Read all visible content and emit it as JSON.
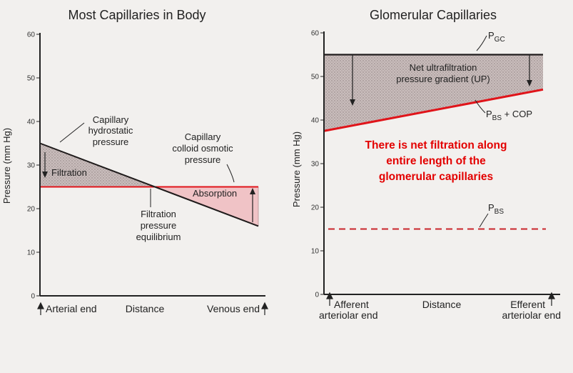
{
  "colors": {
    "background": "#f2f0ee",
    "axis": "#222222",
    "hatch_fill": "#c9bdbc",
    "pink_fill": "#f0c3c6",
    "red_line": "#e0141a",
    "dark_line": "#1f1b1b",
    "note_red": "#e30000"
  },
  "chart_data": [
    {
      "type": "line",
      "title": "Most Capillaries in Body",
      "ylabel": "Pressure (mm Hg)",
      "xlabel": "Distance",
      "ylim": [
        0,
        60
      ],
      "yticks": [
        "0",
        "10",
        "20",
        "30",
        "40",
        "50",
        "60"
      ],
      "xlim": [
        0,
        1
      ],
      "x_labels": {
        "start": "Arterial end",
        "middle": "Distance",
        "end": "Venous end"
      },
      "grid": false,
      "series": [
        {
          "name": "Capillary hydrostatic pressure",
          "x": [
            0,
            1
          ],
          "y": [
            35,
            16
          ]
        },
        {
          "name": "Capillary colloid osmotic pressure",
          "x": [
            0,
            1
          ],
          "y": [
            25,
            25
          ]
        }
      ],
      "regions": [
        {
          "label": "Filtration",
          "from_x": 0,
          "to_x": 0.5
        },
        {
          "label": "Absorption",
          "from_x": 0.5,
          "to_x": 1
        }
      ],
      "annotations": {
        "hydrostatic": [
          "Capillary",
          "hydrostatic",
          "pressure"
        ],
        "oncotic": [
          "Capillary",
          "colloid osmotic",
          "pressure"
        ],
        "equilibrium": [
          "Filtration",
          "pressure",
          "equilibrium"
        ],
        "filtration": "Filtration",
        "absorption": "Absorption"
      }
    },
    {
      "type": "line",
      "title": "Glomerular Capillaries",
      "ylabel": "Pressure (mm Hg)",
      "xlabel": "Distance",
      "ylim": [
        0,
        60
      ],
      "yticks": [
        "0",
        "10",
        "20",
        "30",
        "40",
        "50",
        "60"
      ],
      "xlim": [
        0,
        1
      ],
      "x_labels": {
        "start": [
          "Afferent",
          "arteriolar end"
        ],
        "middle": "Distance",
        "end": [
          "Efferent",
          "arteriolar end"
        ]
      },
      "grid": false,
      "series": [
        {
          "name": "PGC",
          "x": [
            0,
            1
          ],
          "y": [
            55,
            55
          ]
        },
        {
          "name": "PBS + COP",
          "x": [
            0,
            1
          ],
          "y": [
            37.5,
            47
          ]
        },
        {
          "name": "PBS",
          "x": [
            0,
            1
          ],
          "y": [
            15,
            15
          ],
          "style": "dashed"
        }
      ],
      "regions": [
        {
          "label": "Net ultrafiltration pressure gradient (UP)",
          "from_x": 0,
          "to_x": 1
        }
      ],
      "annotations": {
        "pgc_main": "P",
        "pgc_sub": "GC",
        "pbscop_main": "P",
        "pbscop_sub": "BS",
        "pbscop_suffix": " + COP",
        "pbs_main": "P",
        "pbs_sub": "BS",
        "up": [
          "Net ultrafiltration",
          "pressure gradient (UP)"
        ],
        "note": [
          "There is net filtration along",
          "entire length of the",
          "glomerular capillaries"
        ]
      }
    }
  ]
}
